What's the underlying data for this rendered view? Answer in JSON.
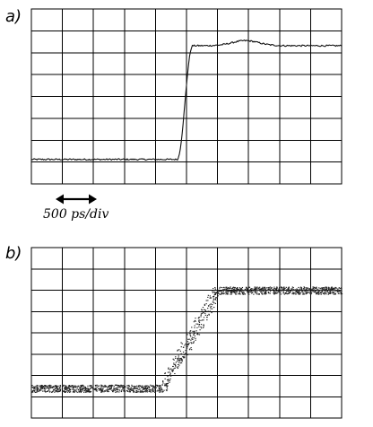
{
  "figure": {
    "panel_a": {
      "label": "a)",
      "grid": {
        "cols": 10,
        "rows": 8
      },
      "trace": {
        "baseline_div": 1.12,
        "top_div": 6.32,
        "rise_start_div": 4.7,
        "rise_end_div": 5.2,
        "overshoot_peak_div": 6.55,
        "overshoot_center_div": 6.9
      }
    },
    "timebase": {
      "label": "500 ps/div",
      "arrow_icon": "double-headed-arrow-icon"
    },
    "panel_b": {
      "label": "b)",
      "grid": {
        "cols": 10,
        "rows": 8
      },
      "eye": {
        "baseline_div": 1.4,
        "top_div": 6.0,
        "rise_start_div": 4.2,
        "rise_end_div": 6.0,
        "band_div": 0.35
      }
    }
  },
  "colors": {
    "grid": "#000000",
    "trace": "#111111",
    "background": "#ffffff"
  }
}
